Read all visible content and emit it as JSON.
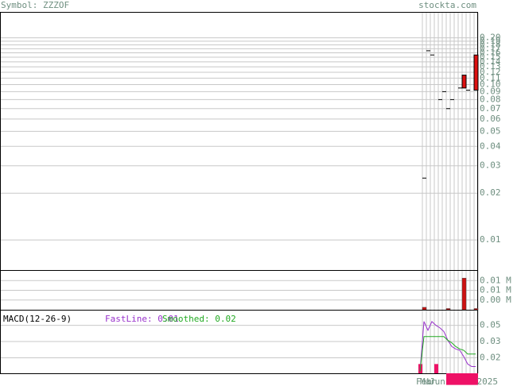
{
  "header": {
    "symbol": "Symbol: ZZZOF",
    "site": "stockta.com"
  },
  "x_labels": [
    "Feb",
    "Mar",
    "Jun",
    "2025"
  ],
  "chart_data": [
    {
      "type": "candlestick",
      "log_scale": true,
      "grid": true,
      "color": "#dd1111",
      "categories": [
        null,
        null,
        null,
        null,
        null,
        null,
        null,
        null,
        null,
        null,
        null,
        null,
        null,
        null,
        null
      ],
      "open": [
        null,
        0.025,
        0.165,
        0.155,
        null,
        0.08,
        0.09,
        0.07,
        0.08,
        null,
        0.095,
        0.095,
        0.092,
        null,
        0.092
      ],
      "close": [
        null,
        0.025,
        0.165,
        0.155,
        null,
        0.08,
        0.09,
        0.07,
        0.08,
        null,
        0.095,
        0.115,
        0.092,
        null,
        0.155
      ],
      "ylim": [
        0.0064,
        0.29
      ],
      "yticks": [
        {
          "value": 0.2,
          "label": "0.20"
        },
        0.19,
        0.18,
        0.17,
        0.16,
        0.15,
        0.14,
        0.13,
        0.12,
        0.11,
        {
          "value": 0.1,
          "label": "0.10"
        },
        0.09,
        0.08,
        0.07,
        0.06,
        0.05,
        0.04,
        0.03,
        0.02,
        0.01
      ]
    },
    {
      "type": "bar",
      "color": "#cc1111",
      "grid": true,
      "values": [
        null,
        0.001,
        null,
        null,
        null,
        null,
        null,
        0.0005,
        null,
        null,
        null,
        0.013,
        null,
        null,
        0.0005
      ],
      "ylim": [
        0,
        0.016
      ],
      "yticks": [
        {
          "value": 0.012,
          "label": "0.01 M"
        },
        {
          "value": 0.008,
          "label": "0.01 M"
        },
        {
          "value": 0.004,
          "label": "0.00 M"
        }
      ]
    },
    {
      "type": "line",
      "title": "MACD(12-26-9)",
      "grid": true,
      "series": [
        {
          "name": "FastLine: 0.01",
          "color": "#9933cc",
          "values": [
            0.01,
            0.05,
            0.043,
            0.05,
            0.047,
            0.045,
            0.042,
            0.035,
            0.03,
            0.028,
            0.027,
            0.022,
            0.016,
            0.014,
            0.014
          ]
        },
        {
          "name": "Smoothed: 0.02",
          "color": "#22aa22",
          "values": [
            0.01,
            0.038,
            0.038,
            0.038,
            0.038,
            0.038,
            0.038,
            0.035,
            0.033,
            0.03,
            0.028,
            0.027,
            0.024,
            0.024,
            0.024
          ]
        }
      ],
      "histogram": {
        "color": "#ee1166",
        "values": [
          0.016,
          null,
          null,
          null,
          0.016,
          null,
          null,
          -0.0007,
          -0.0007,
          -0.0007,
          -0.0007,
          -0.0007,
          -0.0007,
          -0.0007,
          -0.0007
        ]
      },
      "ylim": [
        0.0086,
        0.0588
      ],
      "yticks": [
        {
          "value": 0.047,
          "label": "0.05"
        },
        {
          "value": 0.034,
          "label": "0.03"
        },
        {
          "value": 0.021,
          "label": "0.02"
        }
      ]
    }
  ]
}
